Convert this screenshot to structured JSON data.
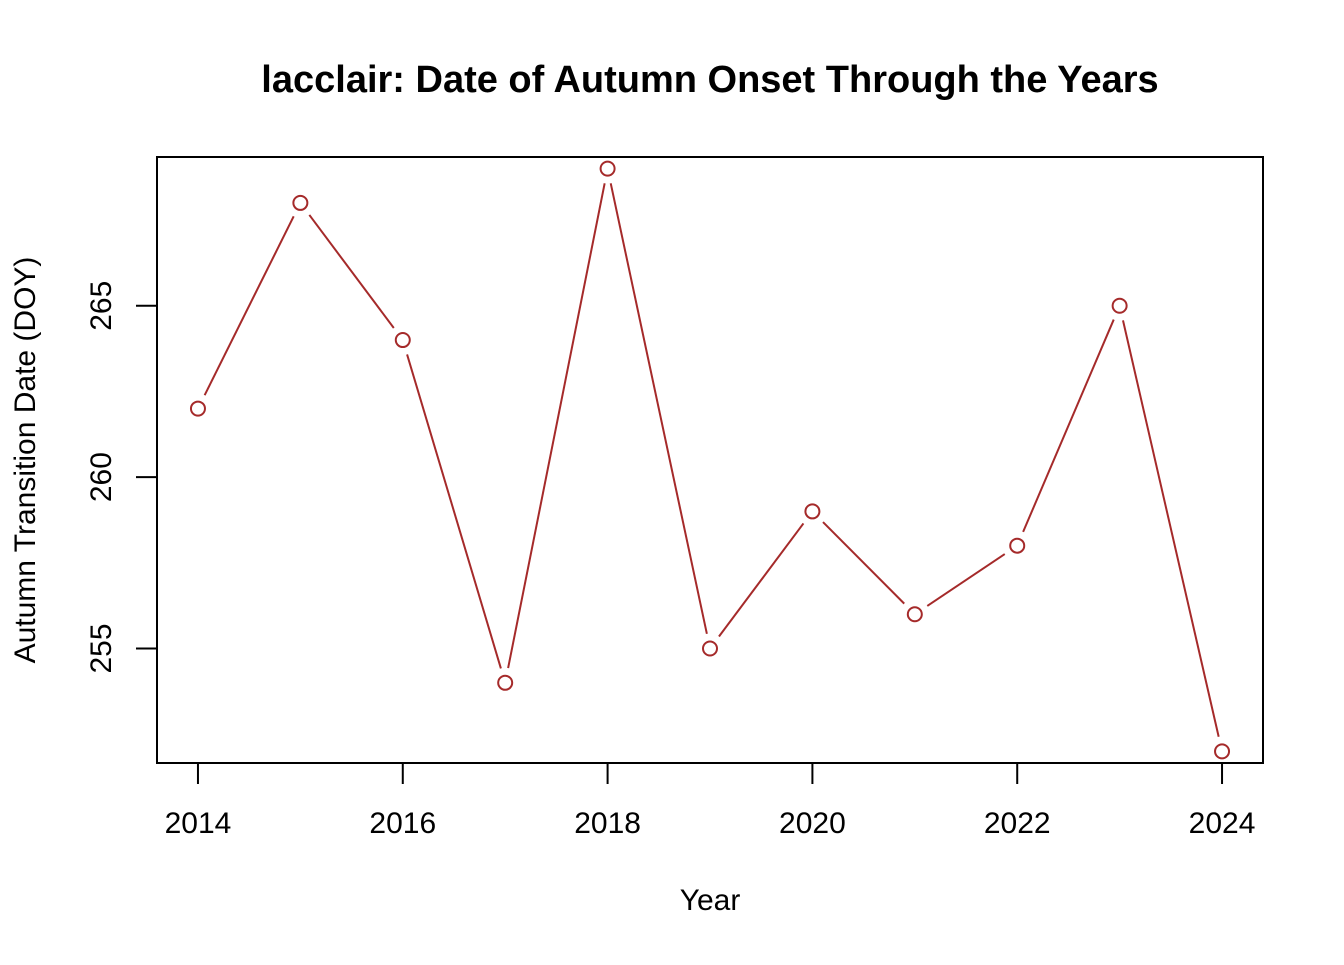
{
  "chart_data": {
    "type": "line",
    "title": "lacclair: Date of Autumn Onset Through the Years",
    "xlabel": "Year",
    "ylabel": "Autumn Transition Date (DOY)",
    "x": [
      2014,
      2015,
      2016,
      2017,
      2018,
      2019,
      2020,
      2021,
      2022,
      2023,
      2024
    ],
    "series": [
      {
        "values": [
          262,
          268,
          264,
          254,
          269,
          255,
          259,
          256,
          258,
          265,
          252
        ],
        "color": "#A52A2A",
        "marker": "open-circle"
      }
    ],
    "xlim": [
      2013.6,
      2024.4
    ],
    "ylim": [
      251.66,
      269.34
    ],
    "xticks": [
      2014,
      2016,
      2018,
      2020,
      2022,
      2024
    ],
    "yticks": [
      255,
      260,
      265
    ],
    "grid": false,
    "legend": "none"
  }
}
